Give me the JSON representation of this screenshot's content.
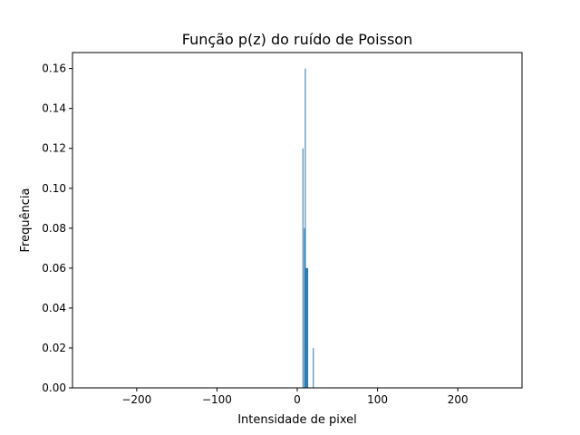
{
  "chart_data": {
    "type": "bar",
    "title": "Função p(z) do ruído de Poisson",
    "xlabel": "Intensidade de pixel",
    "ylabel": "Frequência",
    "xlim": [
      -280,
      280
    ],
    "ylim": [
      0,
      0.168
    ],
    "xticks": [
      -200,
      -100,
      0,
      100,
      200
    ],
    "xtick_labels": [
      "−200",
      "−100",
      "0",
      "100",
      "200"
    ],
    "yticks": [
      0.0,
      0.02,
      0.04,
      0.06,
      0.08,
      0.1,
      0.12,
      0.14,
      0.16
    ],
    "ytick_labels": [
      "0.00",
      "0.02",
      "0.04",
      "0.06",
      "0.08",
      "0.10",
      "0.12",
      "0.14",
      "0.16"
    ],
    "grid": false,
    "bar_color": "#1f77b4",
    "series": [
      {
        "x": [
          7,
          8,
          9,
          10,
          11,
          12,
          13,
          14,
          15,
          16,
          17,
          18,
          19,
          20
        ],
        "values": [
          0.12,
          0.0,
          0.08,
          0.16,
          0.06,
          0.06,
          0.06,
          0.0,
          0.0,
          0.0,
          0.0,
          0.0,
          0.0,
          0.02
        ]
      }
    ]
  }
}
